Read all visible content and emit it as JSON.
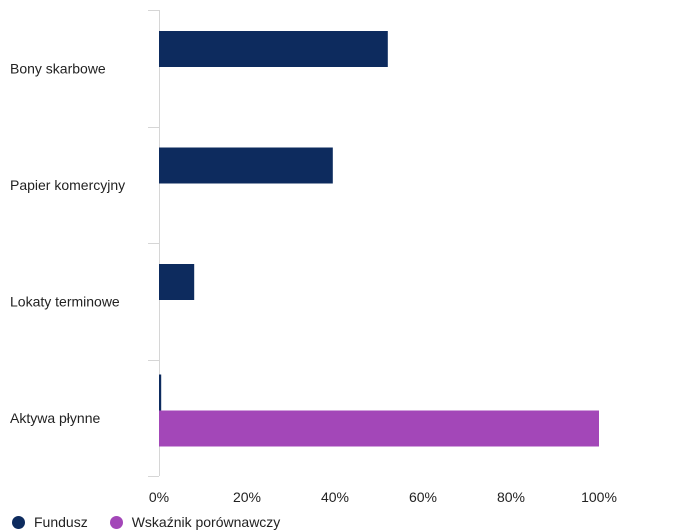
{
  "chart_data": {
    "type": "bar",
    "orientation": "horizontal",
    "categories": [
      "Bony skarbowe",
      "Papier komercyjny",
      "Lokaty terminowe",
      "Aktywa płynne"
    ],
    "series": [
      {
        "name": "Fundusz",
        "color": "#0d2b5e",
        "values": [
          52,
          39.5,
          8,
          0.5
        ]
      },
      {
        "name": "Wskaźnik porównawczy",
        "color": "#a347b8",
        "values": [
          0,
          0,
          0,
          100
        ]
      }
    ],
    "xlim": [
      0,
      120
    ],
    "xticks": [
      0,
      20,
      40,
      60,
      80,
      100
    ],
    "tick_labels": [
      "0%",
      "20%",
      "40%",
      "60%",
      "80%",
      "100%"
    ],
    "legend_position": "bottom-left",
    "grid": false
  }
}
